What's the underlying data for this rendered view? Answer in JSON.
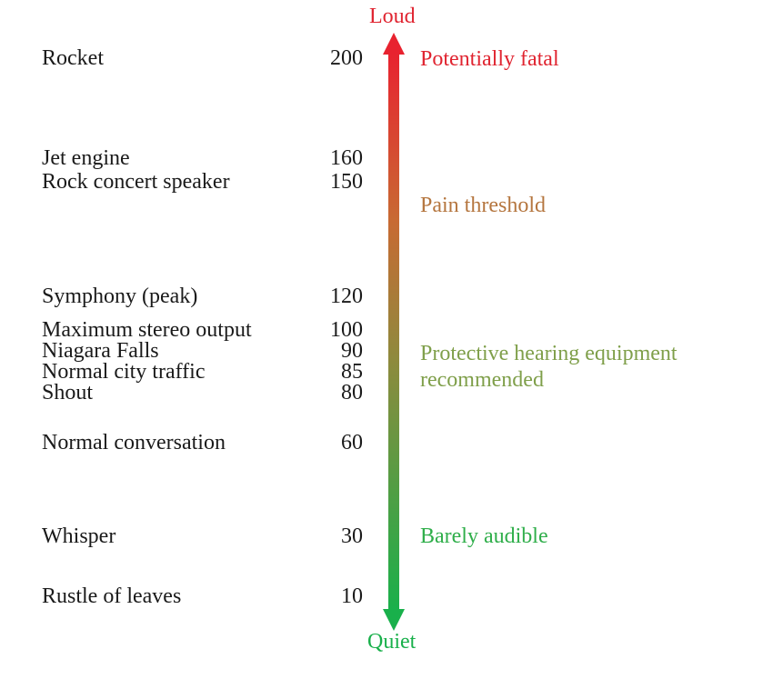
{
  "axis": {
    "top_label": "Loud",
    "bottom_label": "Quiet",
    "top_color": "#e8222f",
    "bottom_color": "#19b04b"
  },
  "sources": [
    {
      "name": "Rocket",
      "value": "200"
    },
    {
      "name": "Jet engine",
      "value": "160"
    },
    {
      "name": "Rock concert speaker",
      "value": "150"
    },
    {
      "name": "Symphony (peak)",
      "value": "120"
    },
    {
      "name": "Maximum stereo output",
      "value": "100"
    },
    {
      "name": "Niagara Falls",
      "value": "90"
    },
    {
      "name": "Normal city traffic",
      "value": "85"
    },
    {
      "name": "Shout",
      "value": "80"
    },
    {
      "name": "Normal conversation",
      "value": "60"
    },
    {
      "name": "Whisper",
      "value": "30"
    },
    {
      "name": "Rustle of leaves",
      "value": "10"
    }
  ],
  "notes": [
    {
      "text": "Potentially fatal",
      "color": "#e02430"
    },
    {
      "text": "Pain threshold",
      "color": "#b5763f"
    },
    {
      "text": "Protective hearing equipment",
      "color": "#7f9f4a"
    },
    {
      "text": "recommended",
      "color": "#7f9f4a"
    },
    {
      "text": "Barely audible",
      "color": "#2fae4a"
    }
  ]
}
